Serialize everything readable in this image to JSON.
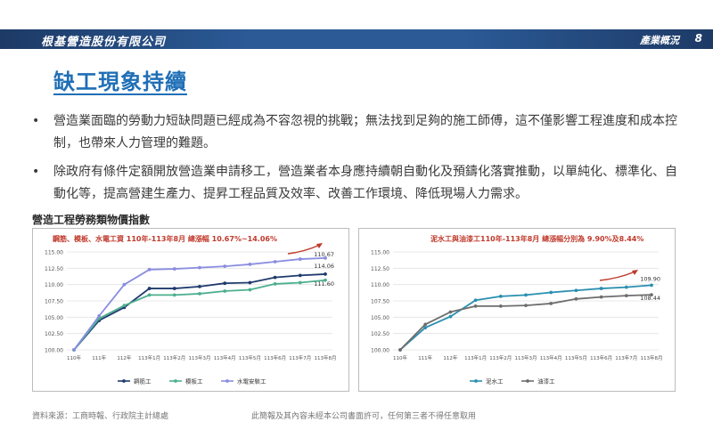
{
  "header": {
    "company": "根基營造股份有限公司",
    "section": "產業概況",
    "page_number": "8",
    "bar_color": "#2b5a96"
  },
  "title": "缺工現象持續",
  "bullets": [
    "營造業面臨的勞動力短缺問題已經成為不容忽視的挑戰；無法找到足夠的施工師傅，這不僅影響工程進度和成本控制，也帶來人力管理的難題。",
    "除政府有條件定額開放營造業申請移工，營造業者本身應持續朝自動化及預鑄化落實推動，以單純化、標準化、自動化等，提高營建生產力、提昇工程品質及效率、改善工作環境、降低現場人力需求。"
  ],
  "chart_section_title": "營造工程勞務類物價指數",
  "chart_data": [
    {
      "type": "line",
      "annotation": "鋼筋、模板、水電工資 110年-113年8月 總漲幅 10.67%~14.06%",
      "categories": [
        "110年",
        "111年",
        "112年",
        "113年1月",
        "113年2月",
        "113年3月",
        "113年4月",
        "113年5月",
        "113年6月",
        "113年7月",
        "113年8月"
      ],
      "ylim": [
        100,
        115
      ],
      "yticks": [
        "100.00",
        "102.50",
        "105.00",
        "107.50",
        "110.00",
        "112.50",
        "115.00"
      ],
      "series": [
        {
          "name": "鋼筋工",
          "color": "#1f3a6e",
          "marker": "circle",
          "values": [
            100,
            104.5,
            106.5,
            109.4,
            109.4,
            109.7,
            110.2,
            110.3,
            111.1,
            111.4,
            111.6
          ]
        },
        {
          "name": "模板工",
          "color": "#4caf8f",
          "marker": "circle",
          "values": [
            100,
            104.8,
            106.8,
            108.4,
            108.4,
            108.6,
            109.0,
            109.2,
            110.1,
            110.3,
            110.67
          ]
        },
        {
          "name": "水電安裝工",
          "color": "#8a8de0",
          "marker": "circle",
          "values": [
            100,
            105.2,
            110.0,
            112.3,
            112.4,
            112.6,
            112.8,
            113.1,
            113.5,
            113.9,
            114.06
          ]
        }
      ],
      "end_labels": [
        "114.06",
        "111.60",
        "110.67"
      ]
    },
    {
      "type": "line",
      "annotation": "泥水工與油漆工110年-113年8月 總漲幅分別為 9.90%及8.44%",
      "categories": [
        "110年",
        "111年",
        "112年",
        "113年1月",
        "113年2月",
        "113年3月",
        "113年4月",
        "113年5月",
        "113年6月",
        "113年7月",
        "113年8月"
      ],
      "ylim": [
        100,
        115
      ],
      "yticks": [
        "100.00",
        "102.50",
        "105.00",
        "107.50",
        "110.00",
        "112.50",
        "115.00"
      ],
      "series": [
        {
          "name": "泥水工",
          "color": "#2b8fb0",
          "marker": "circle",
          "values": [
            100,
            103.4,
            105.1,
            107.6,
            108.2,
            108.4,
            108.8,
            109.1,
            109.4,
            109.6,
            109.9
          ]
        },
        {
          "name": "油漆工",
          "color": "#6e6e6e",
          "marker": "circle",
          "values": [
            100,
            103.9,
            105.8,
            106.7,
            106.7,
            106.8,
            107.1,
            107.8,
            108.1,
            108.3,
            108.44
          ]
        }
      ],
      "end_labels": [
        "109.90",
        "108.44"
      ]
    }
  ],
  "footer": {
    "source": "資料來源：工商時報、行政院主計總處",
    "notice": "此簡報及其內容未經本公司書面許可，任何第三者不得任意取用"
  },
  "annotation_color": "#c0392b"
}
